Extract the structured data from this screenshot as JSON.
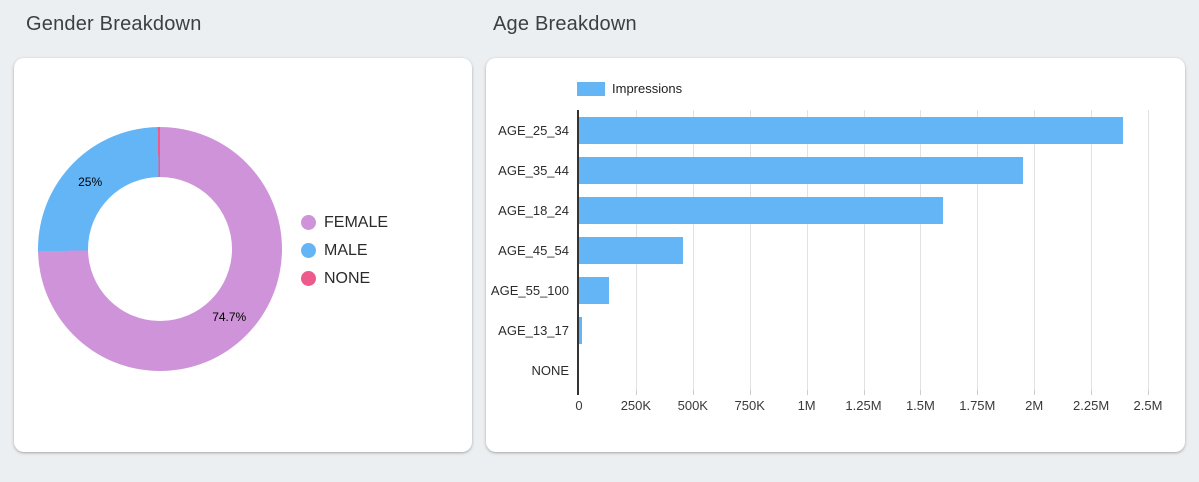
{
  "page_background": "#ECEFF1",
  "chart_data": [
    {
      "id": "gender-breakdown",
      "type": "pie",
      "title": "Gender Breakdown",
      "donut": true,
      "legend_position": "right",
      "slices": [
        {
          "label": "FEMALE",
          "percent": 74.7,
          "data_label": "74.7%",
          "color": "#CE93D8"
        },
        {
          "label": "MALE",
          "percent": 25.0,
          "data_label": "25%",
          "color": "#64B5F6"
        },
        {
          "label": "NONE",
          "percent": 0.3,
          "data_label": "",
          "color": "#ED5A8C"
        }
      ]
    },
    {
      "id": "age-breakdown",
      "type": "bar",
      "orientation": "horizontal",
      "title": "Age Breakdown",
      "series_name": "Impressions",
      "bar_color": "#64B5F6",
      "legend_position": "top",
      "grid": true,
      "categories": [
        "AGE_25_34",
        "AGE_35_44",
        "AGE_18_24",
        "AGE_45_54",
        "AGE_55_100",
        "AGE_13_17",
        "NONE"
      ],
      "values": [
        2390000,
        1950000,
        1600000,
        455000,
        134000,
        15000,
        0
      ],
      "xlim": [
        0,
        2500000
      ],
      "x_ticks": [
        {
          "value": 0,
          "label": "0"
        },
        {
          "value": 250000,
          "label": "250K"
        },
        {
          "value": 500000,
          "label": "500K"
        },
        {
          "value": 750000,
          "label": "750K"
        },
        {
          "value": 1000000,
          "label": "1M"
        },
        {
          "value": 1250000,
          "label": "1.25M"
        },
        {
          "value": 1500000,
          "label": "1.5M"
        },
        {
          "value": 1750000,
          "label": "1.75M"
        },
        {
          "value": 2000000,
          "label": "2M"
        },
        {
          "value": 2250000,
          "label": "2.25M"
        },
        {
          "value": 2500000,
          "label": "2.5M"
        }
      ]
    }
  ]
}
